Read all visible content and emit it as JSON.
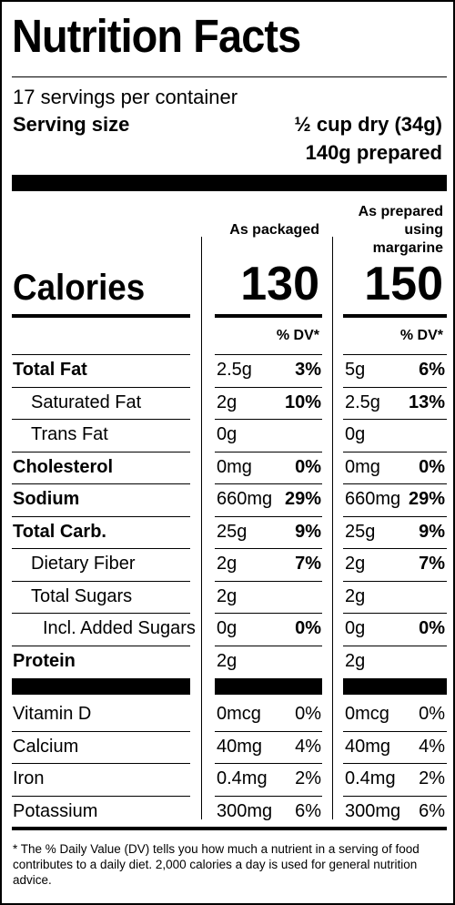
{
  "header": {
    "title": "Nutrition Facts",
    "servings": "17 servings per container",
    "serving_size_label": "Serving size",
    "serving_size_dry": "½ cup dry (34g)",
    "serving_size_prepared": "140g prepared"
  },
  "columns": {
    "col1_header": "As packaged",
    "col2_header_line1": "As prepared",
    "col2_header_line2": "using",
    "col2_header_line3": "margarine"
  },
  "calories": {
    "label": "Calories",
    "packaged": "130",
    "prepared": "150"
  },
  "dv_header": "% DV*",
  "nutrients": [
    {
      "name": "Total Fat",
      "bold": true,
      "indent": 0,
      "pkg_amt": "2.5g",
      "pkg_dv": "3%",
      "prep_amt": "5g",
      "prep_dv": "6%"
    },
    {
      "name": "Saturated Fat",
      "bold": false,
      "indent": 1,
      "pkg_amt": "2g",
      "pkg_dv": "10%",
      "prep_amt": "2.5g",
      "prep_dv": "13%"
    },
    {
      "name": "Trans Fat",
      "bold": false,
      "indent": 1,
      "pkg_amt": "0g",
      "pkg_dv": "",
      "prep_amt": "0g",
      "prep_dv": ""
    },
    {
      "name": "Cholesterol",
      "bold": true,
      "indent": 0,
      "pkg_amt": "0mg",
      "pkg_dv": "0%",
      "prep_amt": "0mg",
      "prep_dv": "0%"
    },
    {
      "name": "Sodium",
      "bold": true,
      "indent": 0,
      "pkg_amt": "660mg",
      "pkg_dv": "29%",
      "prep_amt": "660mg",
      "prep_dv": "29%"
    },
    {
      "name": "Total Carb.",
      "bold": true,
      "indent": 0,
      "pkg_amt": "25g",
      "pkg_dv": "9%",
      "prep_amt": "25g",
      "prep_dv": "9%"
    },
    {
      "name": "Dietary Fiber",
      "bold": false,
      "indent": 1,
      "pkg_amt": "2g",
      "pkg_dv": "7%",
      "prep_amt": "2g",
      "prep_dv": "7%"
    },
    {
      "name": "Total Sugars",
      "bold": false,
      "indent": 1,
      "pkg_amt": "2g",
      "pkg_dv": "",
      "prep_amt": "2g",
      "prep_dv": ""
    },
    {
      "name": "Incl. Added Sugars",
      "bold": false,
      "indent": 2,
      "pkg_amt": "0g",
      "pkg_dv": "0%",
      "prep_amt": "0g",
      "prep_dv": "0%"
    },
    {
      "name": "Protein",
      "bold": true,
      "indent": 0,
      "pkg_amt": "2g",
      "pkg_dv": "",
      "prep_amt": "2g",
      "prep_dv": ""
    }
  ],
  "vitamins": [
    {
      "name": "Vitamin D",
      "pkg_amt": "0mcg",
      "pkg_dv": "0%",
      "prep_amt": "0mcg",
      "prep_dv": "0%"
    },
    {
      "name": "Calcium",
      "pkg_amt": "40mg",
      "pkg_dv": "4%",
      "prep_amt": "40mg",
      "prep_dv": "4%"
    },
    {
      "name": "Iron",
      "pkg_amt": "0.4mg",
      "pkg_dv": "2%",
      "prep_amt": "0.4mg",
      "prep_dv": "2%"
    },
    {
      "name": "Potassium",
      "pkg_amt": "300mg",
      "pkg_dv": "6%",
      "prep_amt": "300mg",
      "prep_dv": "6%"
    }
  ],
  "footnote": "* The % Daily Value (DV) tells you how much a nutrient in a serving of food contributes to a daily diet. 2,000 calories a day is used for general nutrition advice."
}
